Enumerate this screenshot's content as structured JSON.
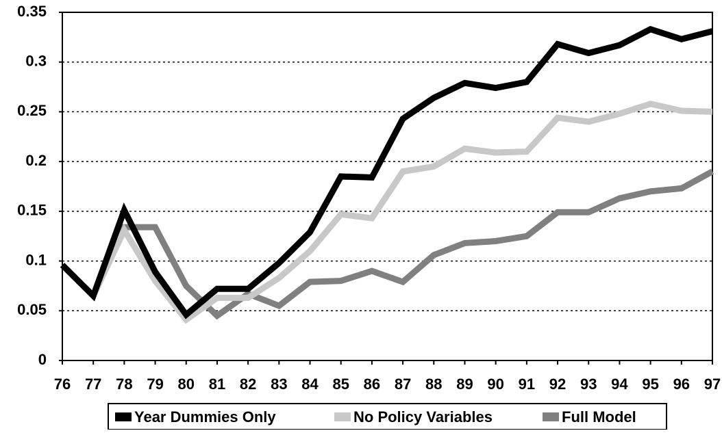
{
  "chart_data": {
    "type": "line",
    "categories": [
      "76",
      "77",
      "78",
      "79",
      "80",
      "81",
      "82",
      "83",
      "84",
      "85",
      "86",
      "87",
      "88",
      "89",
      "90",
      "91",
      "92",
      "93",
      "94",
      "95",
      "96",
      "97"
    ],
    "series": [
      {
        "name": "Year Dummies Only",
        "color": "#000000",
        "values": [
          0.096,
          0.065,
          0.151,
          0.089,
          0.046,
          0.072,
          0.072,
          0.098,
          0.129,
          0.185,
          0.184,
          0.243,
          0.264,
          0.279,
          0.274,
          0.28,
          0.318,
          0.309,
          0.317,
          0.333,
          0.323,
          0.331
        ]
      },
      {
        "name": "No Policy Variables",
        "color": "#c8c8c8",
        "values": [
          0.096,
          0.065,
          0.131,
          0.08,
          0.041,
          0.063,
          0.063,
          0.083,
          0.11,
          0.147,
          0.143,
          0.19,
          0.195,
          0.213,
          0.209,
          0.21,
          0.244,
          0.24,
          0.248,
          0.258,
          0.251,
          0.25
        ]
      },
      {
        "name": "Full Model",
        "color": "#808080",
        "values": [
          0.096,
          0.065,
          0.134,
          0.134,
          0.075,
          0.045,
          0.067,
          0.055,
          0.079,
          0.08,
          0.09,
          0.079,
          0.106,
          0.118,
          0.12,
          0.125,
          0.149,
          0.149,
          0.163,
          0.17,
          0.173,
          0.19
        ]
      }
    ],
    "ylim": [
      0,
      0.35
    ],
    "yticks": [
      0,
      0.05,
      0.1,
      0.15,
      0.2,
      0.25,
      0.3,
      0.35
    ],
    "grid": true,
    "legend": "bottom"
  }
}
